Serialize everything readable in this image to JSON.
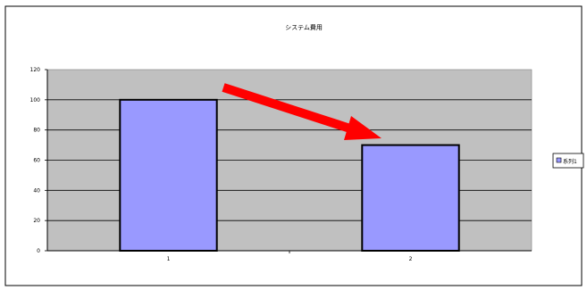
{
  "chart_data": {
    "type": "bar",
    "title": "システム費用",
    "categories": [
      "1",
      "2"
    ],
    "series": [
      {
        "name": "系列1",
        "values": [
          100,
          70
        ]
      }
    ],
    "ylim": [
      0,
      120
    ],
    "yticks": [
      0,
      20,
      40,
      60,
      80,
      100,
      120
    ],
    "grid": true,
    "legend": "right",
    "annotation": {
      "type": "arrow",
      "from_category": "1",
      "to_category": "2",
      "meaning": "decrease"
    },
    "colors": {
      "bar_fill": "#9999ff",
      "plot_background": "#c0c0c0",
      "arrow": "#ff0000",
      "grid": "#000000"
    }
  }
}
